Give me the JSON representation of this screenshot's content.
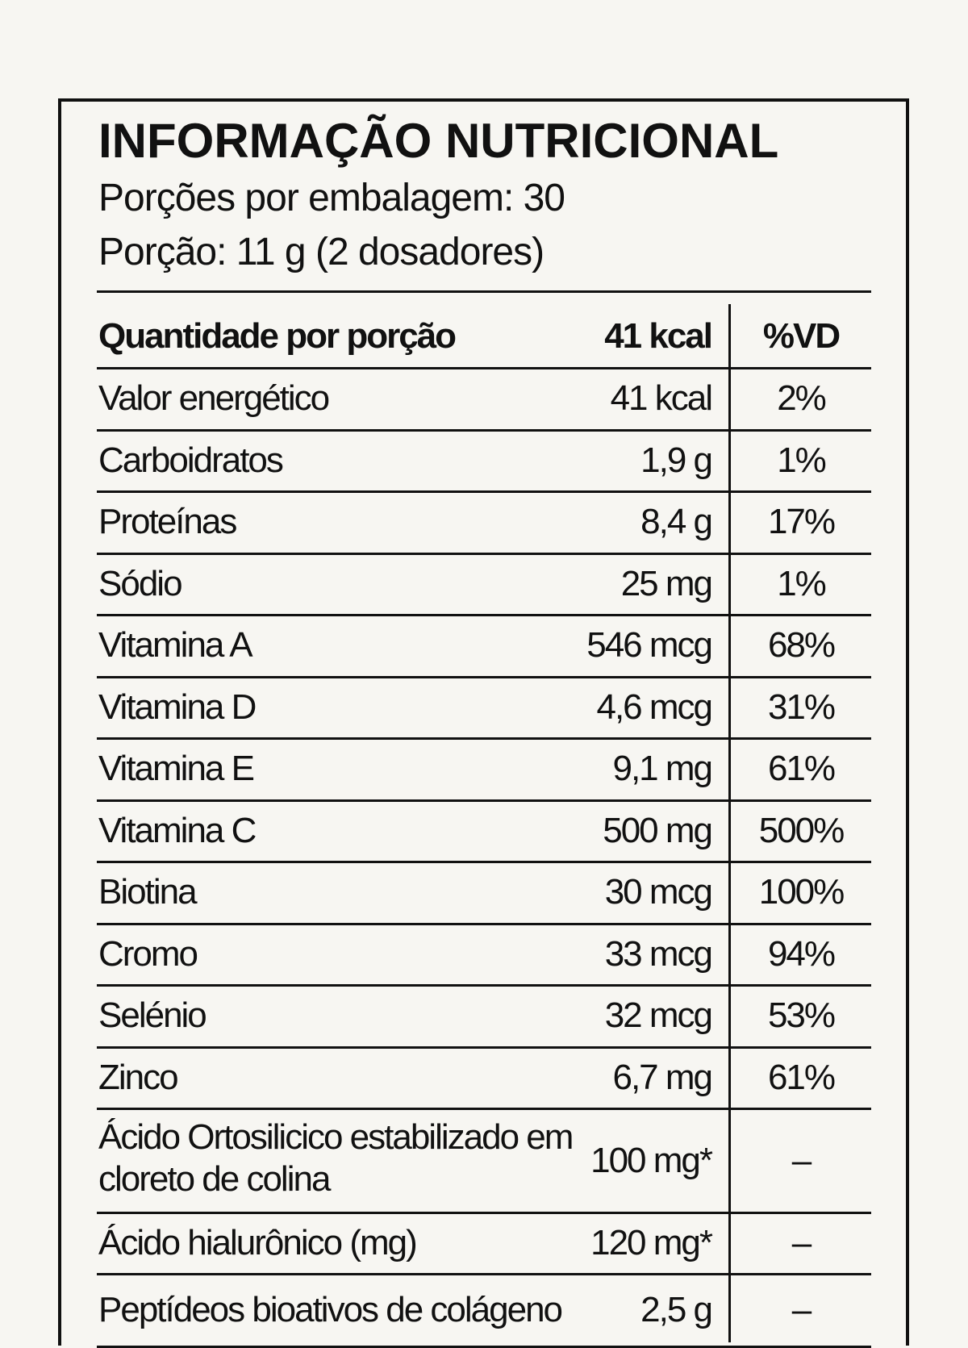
{
  "header": {
    "title": "INFORMAÇÃO NUTRICIONAL",
    "servings": "Porções por embalagem: 30",
    "portion": "Porção: 11 g (2 dosadores)"
  },
  "table": {
    "header": [
      "Quantidade por porção",
      "41 kcal",
      "%VD"
    ],
    "rows": [
      [
        "Valor energético",
        "41 kcal",
        "2%"
      ],
      [
        "Carboidratos",
        "1,9 g",
        "1%"
      ],
      [
        "Proteínas",
        "8,4 g",
        "17%"
      ],
      [
        "Sódio",
        "25 mg",
        "1%"
      ],
      [
        "Vitamina A",
        "546 mcg",
        "68%"
      ],
      [
        "Vitamina D",
        "4,6 mcg",
        "31%"
      ],
      [
        "Vitamina E",
        "9,1 mg",
        "61%"
      ],
      [
        "Vitamina C",
        "500 mg",
        "500%"
      ],
      [
        "Biotina",
        "30 mcg",
        "100%"
      ],
      [
        "Cromo",
        "33 mcg",
        "94%"
      ],
      [
        "Selénio",
        "32 mcg",
        "53%"
      ],
      [
        "Zinco",
        "6,7 mg",
        "61%"
      ],
      [
        "Ácido Ortosilicico estabilizado em cloreto de colina",
        "100 mg*",
        "–"
      ],
      [
        "Ácido hialurônico (mg)",
        "120 mg*",
        "–"
      ],
      [
        "Peptídeos bioativos de colágeno",
        "2,5 g",
        "–"
      ]
    ]
  }
}
